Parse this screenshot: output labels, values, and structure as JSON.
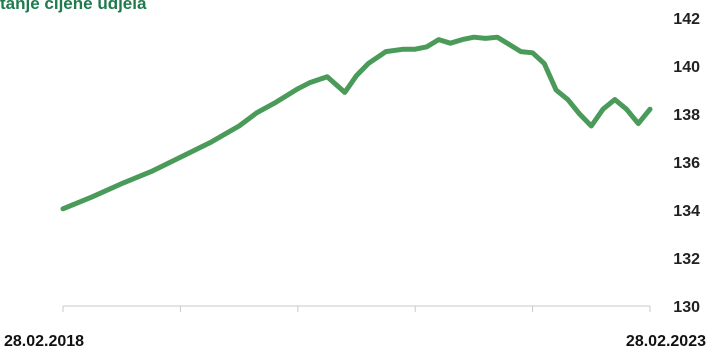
{
  "chart_data": {
    "type": "line",
    "title": "tanje cijene udjela",
    "x_start_label": "28.02.2018",
    "x_end_label": "28.02.2023",
    "ylim": [
      130,
      142
    ],
    "y_ticks": [
      130,
      132,
      134,
      136,
      138,
      140,
      142
    ],
    "y_tick_labels": [
      "130",
      "132",
      "134",
      "136",
      "138",
      "140",
      "142"
    ],
    "grid": false,
    "series": [
      {
        "x": [
          0,
          0.05,
          0.1,
          0.15,
          0.2,
          0.25,
          0.3,
          0.33,
          0.36,
          0.38,
          0.4,
          0.42,
          0.45,
          0.48,
          0.5,
          0.52,
          0.55,
          0.58,
          0.6,
          0.62,
          0.64,
          0.66,
          0.68,
          0.7,
          0.72,
          0.74,
          0.76,
          0.78,
          0.8,
          0.82,
          0.84,
          0.86,
          0.88,
          0.9,
          0.92,
          0.94,
          0.96,
          0.98,
          1.0
        ],
        "y": [
          134.05,
          134.55,
          135.1,
          135.6,
          136.2,
          136.8,
          137.5,
          138.05,
          138.45,
          138.75,
          139.05,
          139.3,
          139.55,
          138.9,
          139.6,
          140.1,
          140.6,
          140.7,
          140.7,
          140.8,
          141.1,
          140.95,
          141.1,
          141.2,
          141.15,
          141.2,
          140.9,
          140.6,
          140.55,
          140.1,
          139.0,
          138.6,
          138.0,
          137.5,
          138.2,
          138.6,
          138.2,
          137.6,
          138.2
        ]
      }
    ],
    "colors": {
      "line": "#4a9a5a",
      "title": "#1f7a4e",
      "axis": "#c9c9c9"
    }
  }
}
